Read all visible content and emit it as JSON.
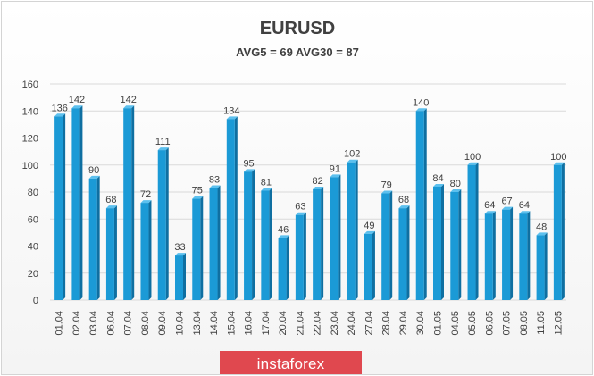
{
  "colors": {
    "bar": "#1b9ad6",
    "bar_dark": "#0f6fa1",
    "grid": "#d9d9d9",
    "brand_bg": "#e0484f"
  },
  "watermark": "instaforex",
  "chart_data": {
    "type": "bar",
    "title": "EURUSD",
    "subtitle": "AVG5 = 69 AVG30 = 87",
    "xlabel": "",
    "ylabel": "",
    "ylim": [
      0,
      160
    ],
    "yticks": [
      0,
      20,
      40,
      60,
      80,
      100,
      120,
      140,
      160
    ],
    "grid": true,
    "legend": "none",
    "categories": [
      "01.04",
      "02.04",
      "03.04",
      "06.04",
      "07.04",
      "08.04",
      "09.04",
      "10.04",
      "13.04",
      "14.04",
      "15.04",
      "16.04",
      "17.04",
      "20.04",
      "21.04",
      "22.04",
      "23.04",
      "24.04",
      "27.04",
      "28.04",
      "29.04",
      "30.04",
      "01.05",
      "04.05",
      "05.05",
      "06.05",
      "07.05",
      "08.05",
      "11.05",
      "12.05"
    ],
    "values": [
      136,
      142,
      90,
      68,
      142,
      72,
      111,
      33,
      75,
      83,
      134,
      95,
      81,
      46,
      63,
      82,
      91,
      102,
      49,
      79,
      68,
      140,
      84,
      80,
      100,
      64,
      67,
      64,
      48,
      100
    ]
  }
}
